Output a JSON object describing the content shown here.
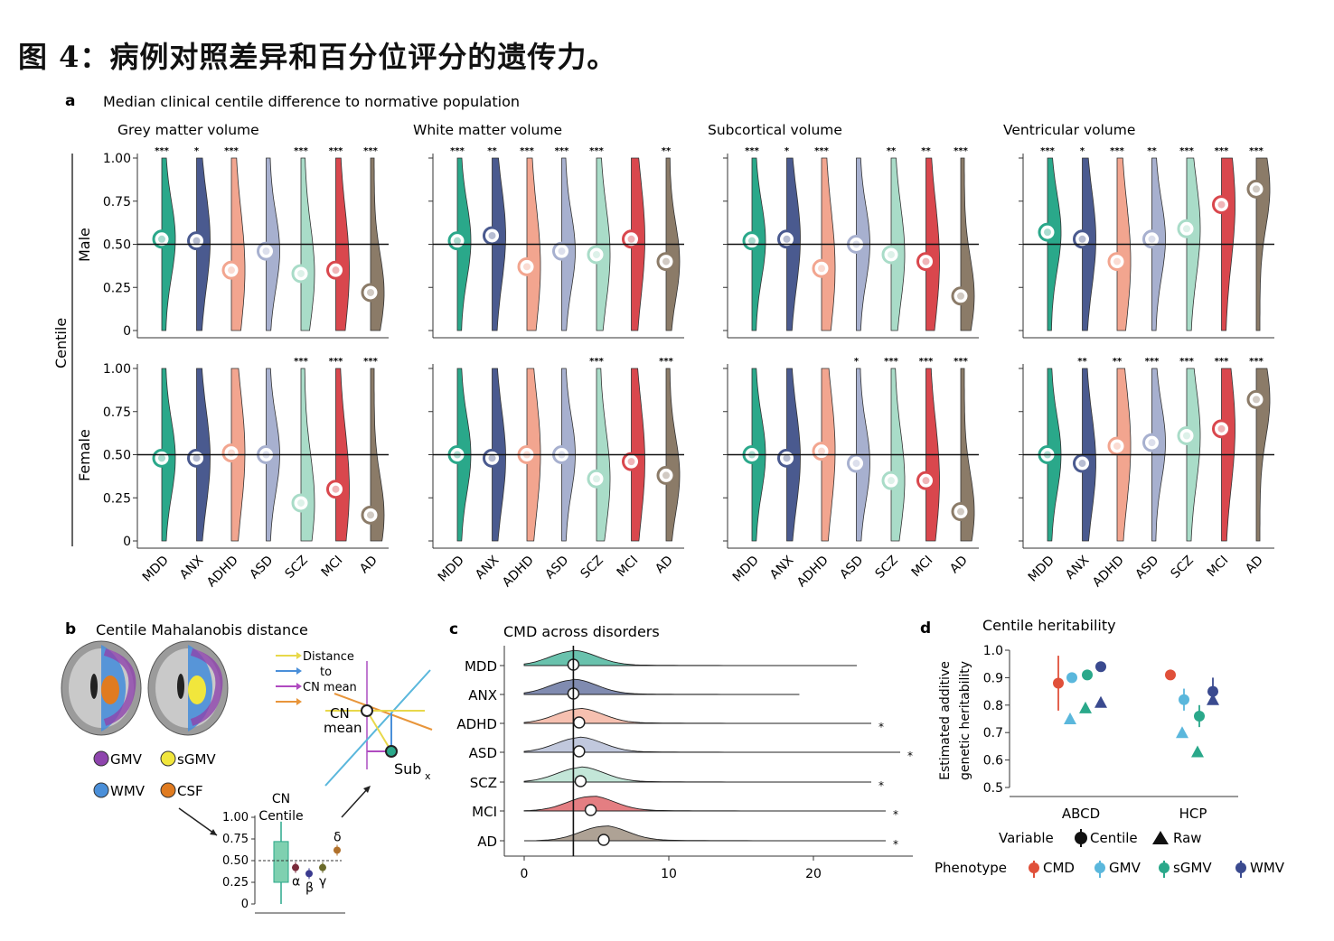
{
  "figure_title": "图 4：病例对照差异和百分位评分的遗传力。",
  "panel_a": {
    "letter": "a",
    "title": "Median clinical centile difference to normative population",
    "y_axis_label": "Centile",
    "row_labels": [
      "Male",
      "Female"
    ],
    "y_ticks": [
      "1.00",
      "0.75",
      "0.50",
      "0.25",
      "0"
    ],
    "disorders": [
      "MDD",
      "ANX",
      "ADHD",
      "ASD",
      "SCZ",
      "MCI",
      "AD"
    ],
    "disorder_colors": [
      "#2aa88a",
      "#4a5a8f",
      "#f2a58f",
      "#a7b0cf",
      "#a9dcc8",
      "#d9474d",
      "#8b7b68"
    ],
    "reference_line": 0.5
  },
  "panel_b": {
    "letter": "b",
    "title": "Centile Mahalanobis distance",
    "legend": [
      {
        "label": "GMV",
        "color": "#8e44ad"
      },
      {
        "label": "sGMV",
        "color": "#f1e63c"
      },
      {
        "label": "WMV",
        "color": "#4a8fd9"
      },
      {
        "label": "CSF",
        "color": "#e07b20"
      }
    ],
    "arrow_legend": [
      {
        "label": "Distance",
        "color": "#e8d84a"
      },
      {
        "label": "to",
        "color": "#4a8fd9"
      },
      {
        "label": "CN mean",
        "color": "#b04ac0"
      },
      {
        "label": "",
        "color": "#e8953a"
      }
    ],
    "cn_mean_label": "CN\nmean",
    "sub_label": "Sub",
    "sub_subscript": "x",
    "box_title": "CN\nCentile",
    "box_ticks": [
      "1.00",
      "0.75",
      "0.50",
      "0.25",
      "0"
    ],
    "greek": [
      "α",
      "β",
      "γ",
      "δ"
    ]
  },
  "panel_c": {
    "letter": "c",
    "title": "CMD across disorders",
    "x_ticks": [
      "0",
      "10",
      "20"
    ]
  },
  "panel_d": {
    "letter": "d",
    "title": "Centile heritability",
    "y_label_line1": "Estimated additive",
    "y_label_line2": "genetic heritability",
    "y_ticks": [
      "1.0",
      "0.9",
      "0.8",
      "0.7",
      "0.6",
      "0.5"
    ],
    "x_groups": [
      "ABCD",
      "HCP"
    ],
    "variable_legend_title": "Variable",
    "variable_legend": [
      "Centile",
      "Raw"
    ],
    "phenotype_legend_title": "Phenotype",
    "phenotype_legend": [
      {
        "label": "CMD",
        "color": "#e0503a"
      },
      {
        "label": "GMV",
        "color": "#5ab7dc"
      },
      {
        "label": "sGMV",
        "color": "#2aa88a"
      },
      {
        "label": "WMV",
        "color": "#3a4a8f"
      }
    ]
  },
  "chart_data": [
    {
      "type": "violin",
      "panel": "a",
      "y_range": [
        0,
        1
      ],
      "categories": [
        "MDD",
        "ANX",
        "ADHD",
        "ASD",
        "SCZ",
        "MCI",
        "AD"
      ],
      "facets": [
        {
          "phenotype": "Grey matter volume",
          "sex": "Male",
          "medians": [
            0.53,
            0.52,
            0.35,
            0.46,
            0.33,
            0.35,
            0.22
          ],
          "significance": [
            "***",
            "*",
            "***",
            "",
            "***",
            "***",
            "***"
          ]
        },
        {
          "phenotype": "White matter volume",
          "sex": "Male",
          "medians": [
            0.52,
            0.55,
            0.37,
            0.46,
            0.44,
            0.53,
            0.4
          ],
          "significance": [
            "***",
            "**",
            "***",
            "***",
            "***",
            "",
            "**"
          ]
        },
        {
          "phenotype": "Subcortical volume",
          "sex": "Male",
          "medians": [
            0.52,
            0.53,
            0.36,
            0.5,
            0.44,
            0.4,
            0.2
          ],
          "significance": [
            "***",
            "*",
            "***",
            "",
            "**",
            "**",
            "***"
          ]
        },
        {
          "phenotype": "Ventricular volume",
          "sex": "Male",
          "medians": [
            0.57,
            0.53,
            0.4,
            0.53,
            0.59,
            0.73,
            0.82
          ],
          "significance": [
            "***",
            "*",
            "***",
            "**",
            "***",
            "***",
            "***"
          ]
        },
        {
          "phenotype": "Grey matter volume",
          "sex": "Female",
          "medians": [
            0.48,
            0.48,
            0.51,
            0.5,
            0.22,
            0.3,
            0.15
          ],
          "significance": [
            "",
            "",
            "",
            "",
            "***",
            "***",
            "***"
          ]
        },
        {
          "phenotype": "White matter volume",
          "sex": "Female",
          "medians": [
            0.5,
            0.48,
            0.5,
            0.5,
            0.36,
            0.46,
            0.38
          ],
          "significance": [
            "",
            "",
            "",
            "",
            "***",
            "",
            "***"
          ]
        },
        {
          "phenotype": "Subcortical volume",
          "sex": "Female",
          "medians": [
            0.5,
            0.48,
            0.52,
            0.45,
            0.35,
            0.35,
            0.17
          ],
          "significance": [
            "",
            "",
            "",
            "*",
            "***",
            "***",
            "***"
          ]
        },
        {
          "phenotype": "Ventricular volume",
          "sex": "Female",
          "medians": [
            0.5,
            0.45,
            0.55,
            0.57,
            0.61,
            0.65,
            0.82
          ],
          "significance": [
            "",
            "**",
            "**",
            "***",
            "***",
            "***",
            "***"
          ]
        }
      ]
    },
    {
      "type": "box",
      "panel": "b",
      "y_range": [
        0,
        1
      ],
      "box": {
        "q1": 0.25,
        "median": 0.48,
        "q3": 0.72,
        "min": 0.0,
        "max": 0.95
      },
      "points": [
        {
          "label": "α",
          "value": 0.42,
          "color": "#7a2a3a"
        },
        {
          "label": "β",
          "value": 0.35,
          "color": "#3a3a8f"
        },
        {
          "label": "γ",
          "value": 0.42,
          "color": "#6a6a2a"
        },
        {
          "label": "δ",
          "value": 0.62,
          "color": "#b0702a"
        }
      ]
    },
    {
      "type": "ridgeline",
      "panel": "c",
      "x_range": [
        0,
        26
      ],
      "categories": [
        "MDD",
        "ANX",
        "ADHD",
        "ASD",
        "SCZ",
        "MCI",
        "AD"
      ],
      "medians": [
        3.4,
        3.4,
        3.8,
        3.8,
        3.9,
        4.6,
        5.5
      ],
      "max": [
        23,
        19,
        24,
        26,
        24,
        25,
        25
      ],
      "significance": [
        "",
        "",
        "*",
        "*",
        "*",
        "*",
        "*"
      ],
      "reference_line": 3.4
    },
    {
      "type": "scatter",
      "panel": "d",
      "y_range": [
        0.5,
        1.0
      ],
      "groups": [
        "ABCD",
        "HCP"
      ],
      "points": [
        {
          "group": "ABCD",
          "phenotype": "CMD",
          "variable": "Centile",
          "value": 0.88,
          "ci": [
            0.78,
            0.98
          ]
        },
        {
          "group": "ABCD",
          "phenotype": "GMV",
          "variable": "Centile",
          "value": 0.9,
          "ci": [
            0.89,
            0.91
          ]
        },
        {
          "group": "ABCD",
          "phenotype": "sGMV",
          "variable": "Centile",
          "value": 0.91,
          "ci": [
            0.9,
            0.92
          ]
        },
        {
          "group": "ABCD",
          "phenotype": "WMV",
          "variable": "Centile",
          "value": 0.94,
          "ci": [
            0.93,
            0.95
          ]
        },
        {
          "group": "ABCD",
          "phenotype": "GMV",
          "variable": "Raw",
          "value": 0.75
        },
        {
          "group": "ABCD",
          "phenotype": "sGMV",
          "variable": "Raw",
          "value": 0.79
        },
        {
          "group": "ABCD",
          "phenotype": "WMV",
          "variable": "Raw",
          "value": 0.81
        },
        {
          "group": "HCP",
          "phenotype": "CMD",
          "variable": "Centile",
          "value": 0.91,
          "ci": [
            0.9,
            0.92
          ]
        },
        {
          "group": "HCP",
          "phenotype": "GMV",
          "variable": "Centile",
          "value": 0.82,
          "ci": [
            0.78,
            0.86
          ]
        },
        {
          "group": "HCP",
          "phenotype": "sGMV",
          "variable": "Centile",
          "value": 0.76,
          "ci": [
            0.72,
            0.8
          ]
        },
        {
          "group": "HCP",
          "phenotype": "WMV",
          "variable": "Centile",
          "value": 0.85,
          "ci": [
            0.82,
            0.9
          ]
        },
        {
          "group": "HCP",
          "phenotype": "GMV",
          "variable": "Raw",
          "value": 0.7
        },
        {
          "group": "HCP",
          "phenotype": "sGMV",
          "variable": "Raw",
          "value": 0.63
        },
        {
          "group": "HCP",
          "phenotype": "WMV",
          "variable": "Raw",
          "value": 0.82
        }
      ]
    }
  ]
}
